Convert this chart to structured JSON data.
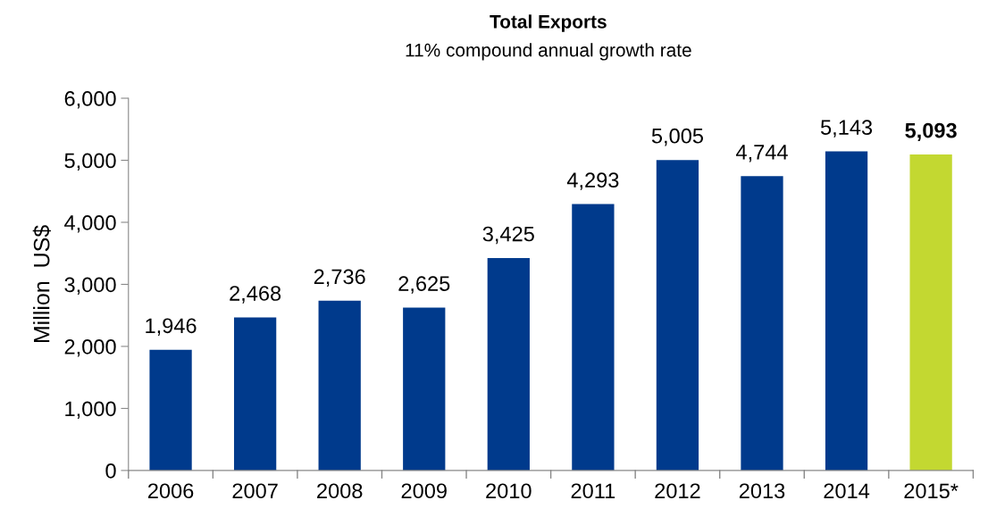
{
  "chart_data": {
    "type": "bar",
    "title": "Total Exports",
    "subtitle": "11% compound annual growth rate",
    "ylabel": "Million  US$",
    "categories": [
      "2006",
      "2007",
      "2008",
      "2009",
      "2010",
      "2011",
      "2012",
      "2013",
      "2014",
      "2015*"
    ],
    "values": [
      1946,
      2468,
      2736,
      2625,
      3425,
      4293,
      5005,
      4744,
      5143,
      5093
    ],
    "colors": [
      "#003a8c",
      "#003a8c",
      "#003a8c",
      "#003a8c",
      "#003a8c",
      "#003a8c",
      "#003a8c",
      "#003a8c",
      "#003a8c",
      "#c3d831"
    ],
    "value_labels": [
      "1,946",
      "2,468",
      "2,736",
      "2,625",
      "3,425",
      "4,293",
      "5,005",
      "4,744",
      "5,143",
      "5,093"
    ],
    "ylim": [
      0,
      6000
    ],
    "yticks": [
      {
        "value": 0,
        "label": "0"
      },
      {
        "value": 1000,
        "label": "1,000"
      },
      {
        "value": 2000,
        "label": "2,000"
      },
      {
        "value": 3000,
        "label": "3,000"
      },
      {
        "value": 4000,
        "label": "4,000"
      },
      {
        "value": 5000,
        "label": "5,000"
      },
      {
        "value": 6000,
        "label": "6,000"
      }
    ],
    "grid": false
  }
}
